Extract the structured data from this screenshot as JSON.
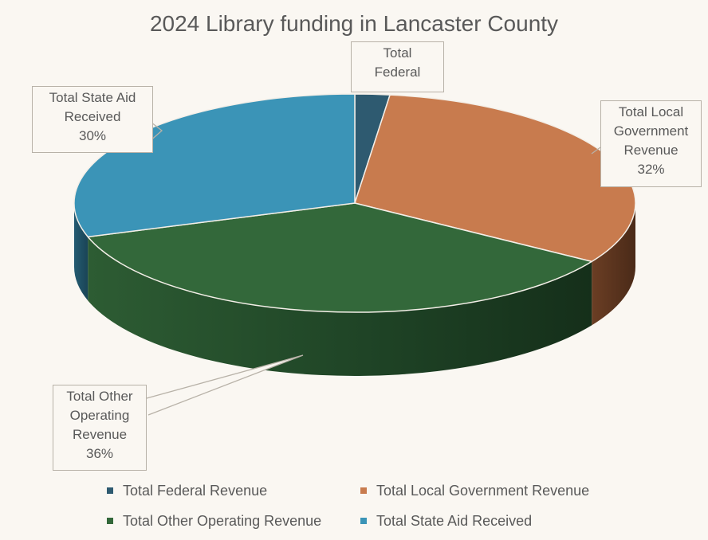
{
  "chart_data": {
    "type": "pie",
    "title": "2024 Library funding in Lancaster County",
    "categories": [
      "Total Federal Revenue",
      "Total Local Government Revenue",
      "Total Other Operating Revenue",
      "Total State Aid Received"
    ],
    "values": [
      2,
      32,
      36,
      30
    ],
    "colors": [
      "#2e5a70",
      "#c87b4e",
      "#33683a",
      "#3b94b7"
    ],
    "data_labels": {
      "federal": {
        "line1": "Total",
        "line2": "Federal"
      },
      "local": {
        "line1": "Total Local",
        "line2": "Government",
        "line3": "Revenue",
        "pct": "32%"
      },
      "other": {
        "line1": "Total Other",
        "line2": "Operating",
        "line3": "Revenue",
        "pct": "36%"
      },
      "state": {
        "line1": "Total State Aid",
        "line2": "Received",
        "pct": "30%"
      }
    },
    "legend": {
      "position": "bottom",
      "items": [
        "Total Federal Revenue",
        "Total Local Government Revenue",
        "Total Other Operating Revenue",
        "Total State Aid Received"
      ]
    },
    "style": "3d"
  }
}
